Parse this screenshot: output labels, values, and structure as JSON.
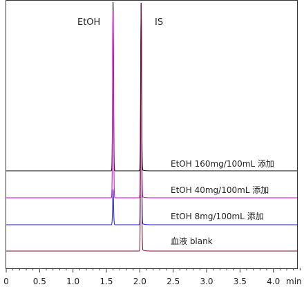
{
  "chart_data": {
    "type": "line",
    "title": "",
    "xlabel": "min",
    "ylabel": "",
    "xlim": [
      0,
      4.5
    ],
    "x_ticks": [
      "0",
      "0.5",
      "1.0",
      "1.5",
      "2.0",
      "2.5",
      "3.0",
      "3.5",
      "4.0"
    ],
    "grid": false,
    "peaks": [
      {
        "name": "EtOH",
        "rt": 1.6
      },
      {
        "name": "IS",
        "rt": 2.02
      }
    ],
    "series": [
      {
        "name": "EtOH 160mg/100mL 添加",
        "color": "#000000",
        "etoh_height": 1.0,
        "is_height": 1.0
      },
      {
        "name": "EtOH 40mg/100mL 添加",
        "color": "#d400d4",
        "etoh_height": 0.96,
        "is_height": 1.0
      },
      {
        "name": "EtOH 8mg/100mL 添加",
        "color": "#1a1acc",
        "etoh_height": 0.16,
        "is_height": 1.0
      },
      {
        "name": "血液 blank",
        "color": "#7a1020",
        "etoh_height": 0.0,
        "is_height": 1.0
      }
    ]
  }
}
